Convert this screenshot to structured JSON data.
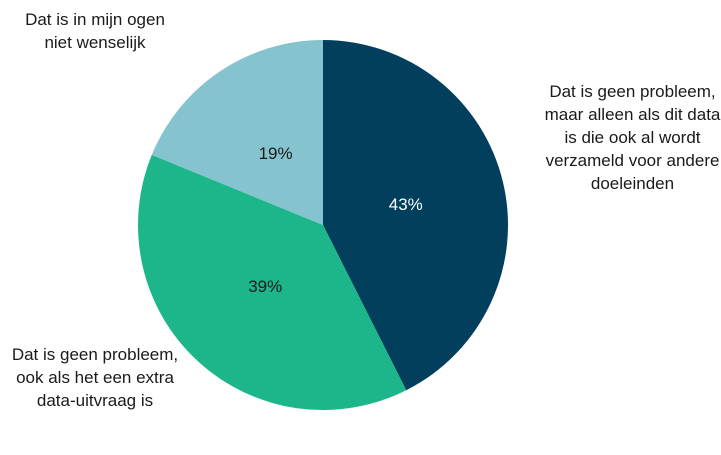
{
  "chart_data": {
    "type": "pie",
    "categories": [
      "Dat is geen probleem, maar alleen als dit data is die ook al wordt verzameld voor andere doeleinden",
      "Dat is geen probleem, ook als het een extra data-uitvraag is",
      "Dat is in mijn ogen niet wenselijk"
    ],
    "values": [
      43,
      39,
      19
    ],
    "value_labels": [
      "43%",
      "39%",
      "19%"
    ],
    "colors": [
      "#023f5c",
      "#1cb68a",
      "#85c4cf"
    ],
    "label_colors": [
      "#ffffff",
      "#1a1a1a",
      "#1a1a1a"
    ]
  }
}
